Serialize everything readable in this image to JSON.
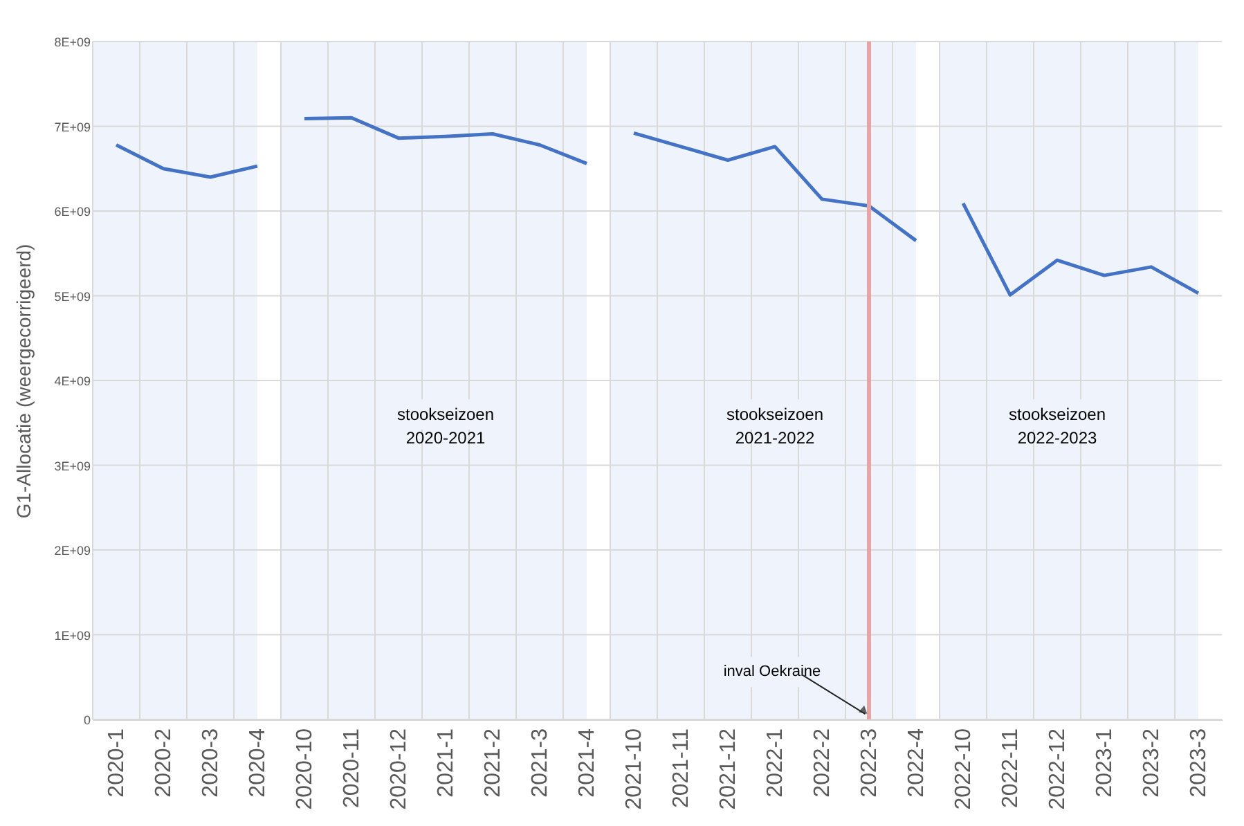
{
  "chart_data": {
    "type": "line",
    "ylabel": "G1-Allocatie (weergecorrigeerd)",
    "categories": [
      "2020-1",
      "2020-2",
      "2020-3",
      "2020-4",
      "2020-10",
      "2020-11",
      "2020-12",
      "2021-1",
      "2021-2",
      "2021-3",
      "2021-4",
      "2021-10",
      "2021-11",
      "2021-12",
      "2022-1",
      "2022-2",
      "2022-3",
      "2022-4",
      "2022-10",
      "2022-11",
      "2022-12",
      "2023-1",
      "2023-2",
      "2023-3"
    ],
    "series": [
      {
        "color": "#4472c4",
        "values": [
          6780000000.0,
          6500000000.0,
          6400000000.0,
          6530000000.0,
          null,
          null,
          null,
          null,
          null,
          null,
          null,
          null,
          null,
          null,
          null,
          null,
          null,
          null,
          null,
          null,
          null,
          null,
          null,
          null
        ]
      },
      {
        "color": "#4472c4",
        "values": [
          null,
          null,
          null,
          null,
          7090000000.0,
          7100000000.0,
          6860000000.0,
          6880000000.0,
          6910000000.0,
          6780000000.0,
          6560000000.0,
          null,
          null,
          null,
          null,
          null,
          null,
          null,
          null,
          null,
          null,
          null,
          null,
          null
        ]
      },
      {
        "color": "#4472c4",
        "values": [
          null,
          null,
          null,
          null,
          null,
          null,
          null,
          null,
          null,
          null,
          null,
          6920000000.0,
          6760000000.0,
          6600000000.0,
          6760000000.0,
          6140000000.0,
          6060000000.0,
          5650000000.0,
          null,
          null,
          null,
          null,
          null,
          null
        ]
      },
      {
        "color": "#4472c4",
        "values": [
          null,
          null,
          null,
          null,
          null,
          null,
          null,
          null,
          null,
          null,
          null,
          null,
          null,
          null,
          null,
          null,
          null,
          null,
          6090000000.0,
          5010000000.0,
          5420000000.0,
          5240000000.0,
          5340000000.0,
          5030000000.0
        ]
      }
    ],
    "ylim": [
      0,
      8000000000
    ],
    "yticks": [
      0,
      {
        "value": 1000000000,
        "label": "1E+09"
      },
      {
        "value": 2000000000,
        "label": "2E+09"
      },
      {
        "value": 3000000000,
        "label": "3E+09"
      },
      {
        "value": 4000000000,
        "label": "4E+09"
      },
      {
        "value": 5000000000,
        "label": "5E+09"
      },
      {
        "value": 6000000000,
        "label": "6E+09"
      },
      {
        "value": 7000000000,
        "label": "7E+09"
      },
      {
        "value": 8000000000,
        "label": "8E+09"
      }
    ],
    "bands": [
      {
        "axis": "x",
        "from": "2020-1",
        "to": "2020-4",
        "color": "#eef3fc"
      },
      {
        "axis": "x",
        "from": "2020-10",
        "to": "2021-4",
        "label": "stookseizoen 2020-2021",
        "color": "#eef3fc"
      },
      {
        "axis": "x",
        "from": "2021-10",
        "to": "2022-4",
        "label": "stookseizoen 2021-2022",
        "color": "#eef3fc"
      },
      {
        "axis": "x",
        "from": "2022-10",
        "to": "2023-3",
        "label": "stookseizoen 2022-2023",
        "color": "#eef3fc"
      }
    ],
    "ref_lines": [
      {
        "axis": "x",
        "value": "2022-3",
        "label": "inval Oekraine",
        "color": "#e8a3a6"
      }
    ],
    "grid": true,
    "marker": "none",
    "line_style": "solid"
  }
}
